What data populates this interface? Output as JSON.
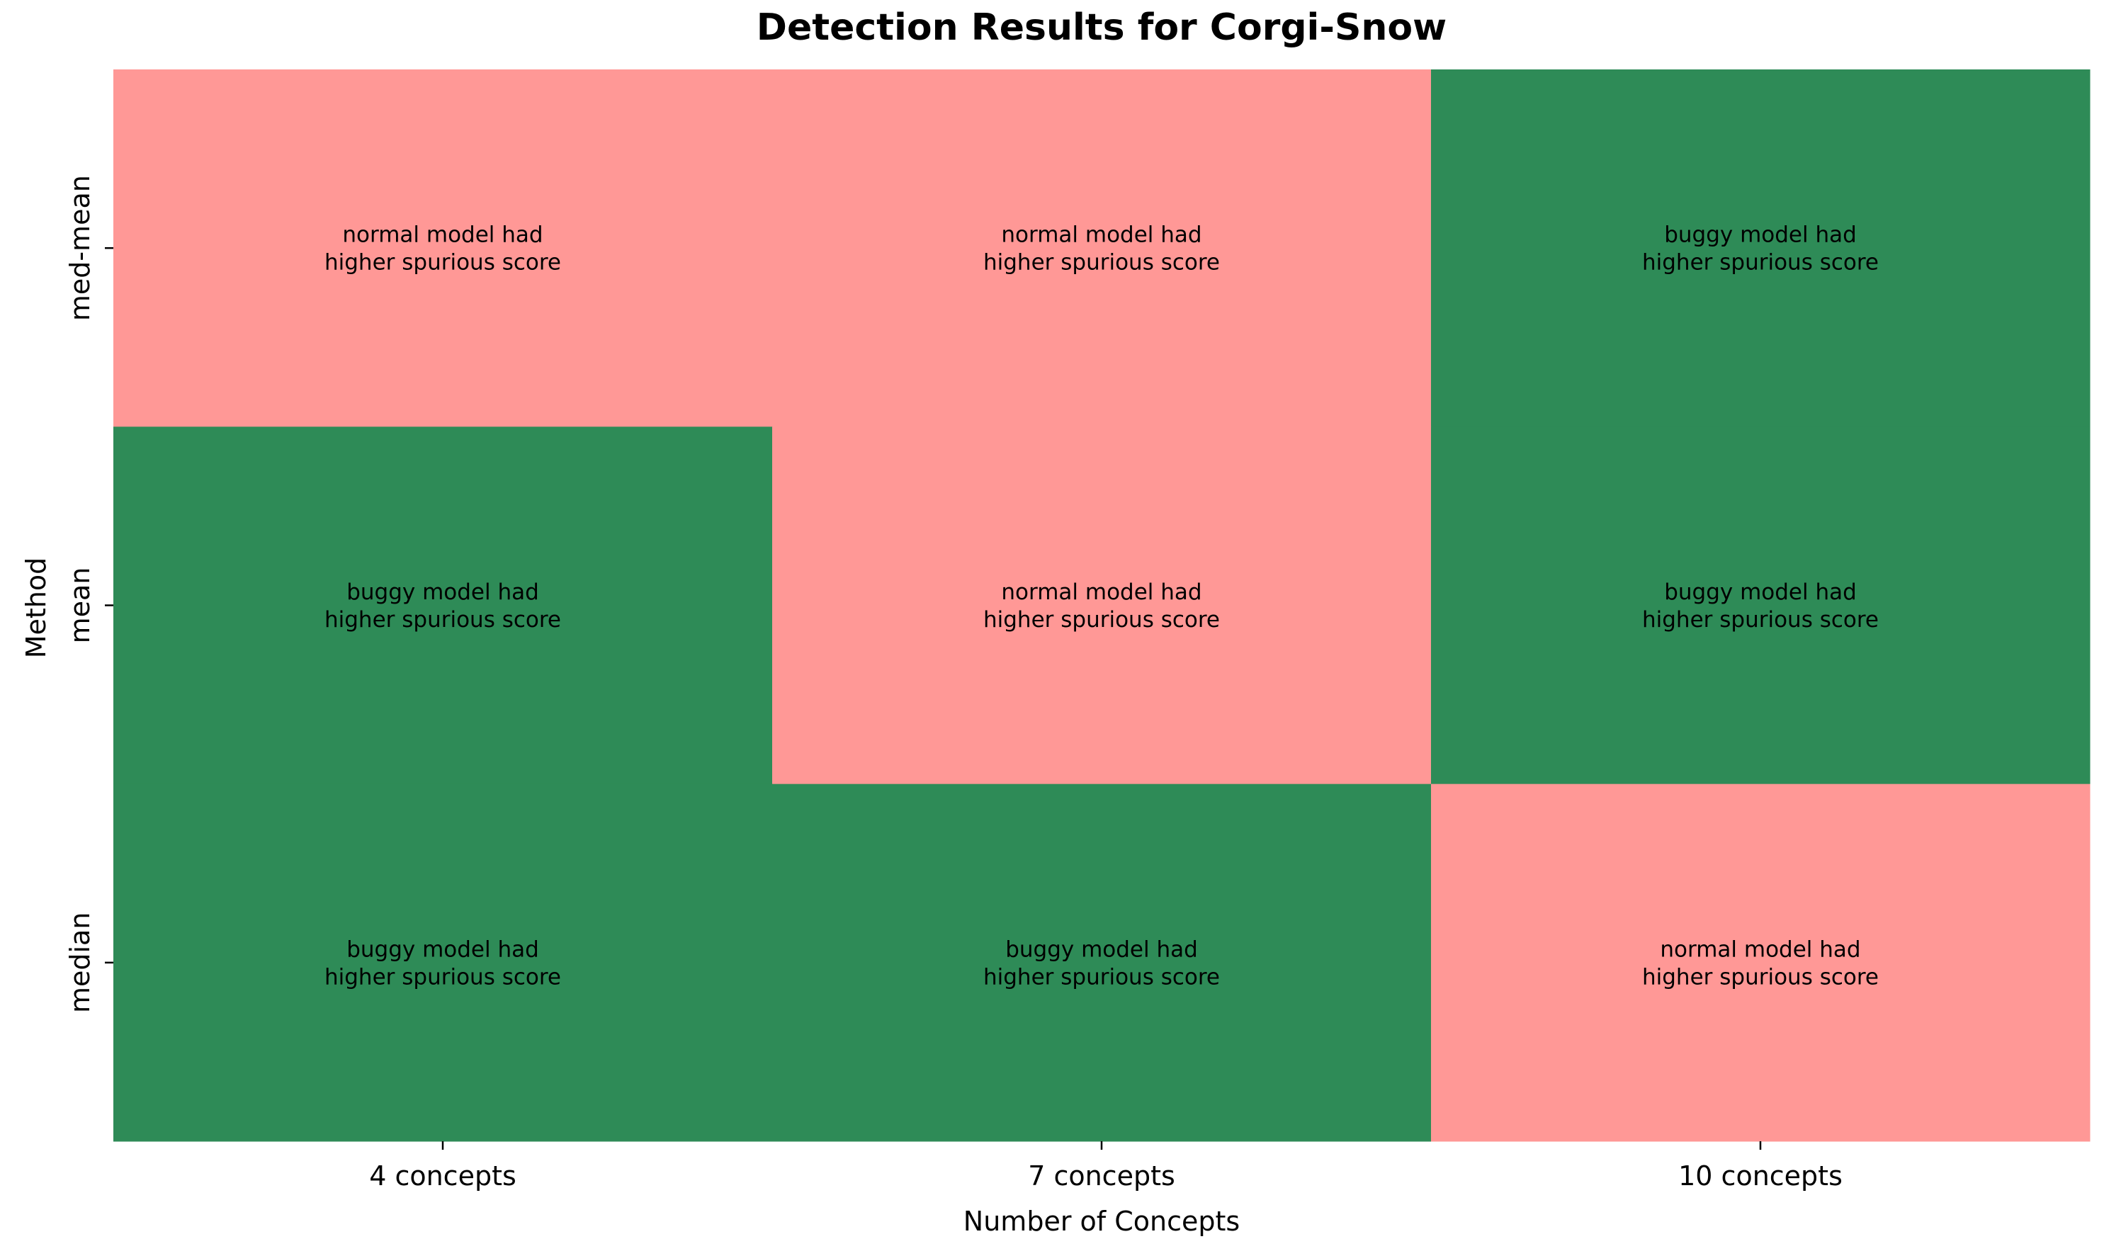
{
  "chart_data": {
    "type": "heatmap",
    "title": "Detection Results for Corgi-Snow",
    "xlabel": "Number of Concepts",
    "ylabel": "Method",
    "x_categories": [
      "4 concepts",
      "7 concepts",
      "10 concepts"
    ],
    "y_categories": [
      "med-mean",
      "mean",
      "median"
    ],
    "cells": [
      [
        {
          "outcome": "normal",
          "text": [
            "normal model had",
            "higher spurious score"
          ]
        },
        {
          "outcome": "normal",
          "text": [
            "normal model had",
            "higher spurious score"
          ]
        },
        {
          "outcome": "buggy",
          "text": [
            "buggy model had",
            "higher spurious score"
          ]
        }
      ],
      [
        {
          "outcome": "buggy",
          "text": [
            "buggy model had",
            "higher spurious score"
          ]
        },
        {
          "outcome": "normal",
          "text": [
            "normal model had",
            "higher spurious score"
          ]
        },
        {
          "outcome": "buggy",
          "text": [
            "buggy model had",
            "higher spurious score"
          ]
        }
      ],
      [
        {
          "outcome": "buggy",
          "text": [
            "buggy model had",
            "higher spurious score"
          ]
        },
        {
          "outcome": "buggy",
          "text": [
            "buggy model had",
            "higher spurious score"
          ]
        },
        {
          "outcome": "normal",
          "text": [
            "normal model had",
            "higher spurious score"
          ]
        }
      ]
    ],
    "colors": {
      "buggy": "#2e8b57",
      "normal": "#ff9896"
    },
    "grid": false,
    "legend": "none"
  }
}
